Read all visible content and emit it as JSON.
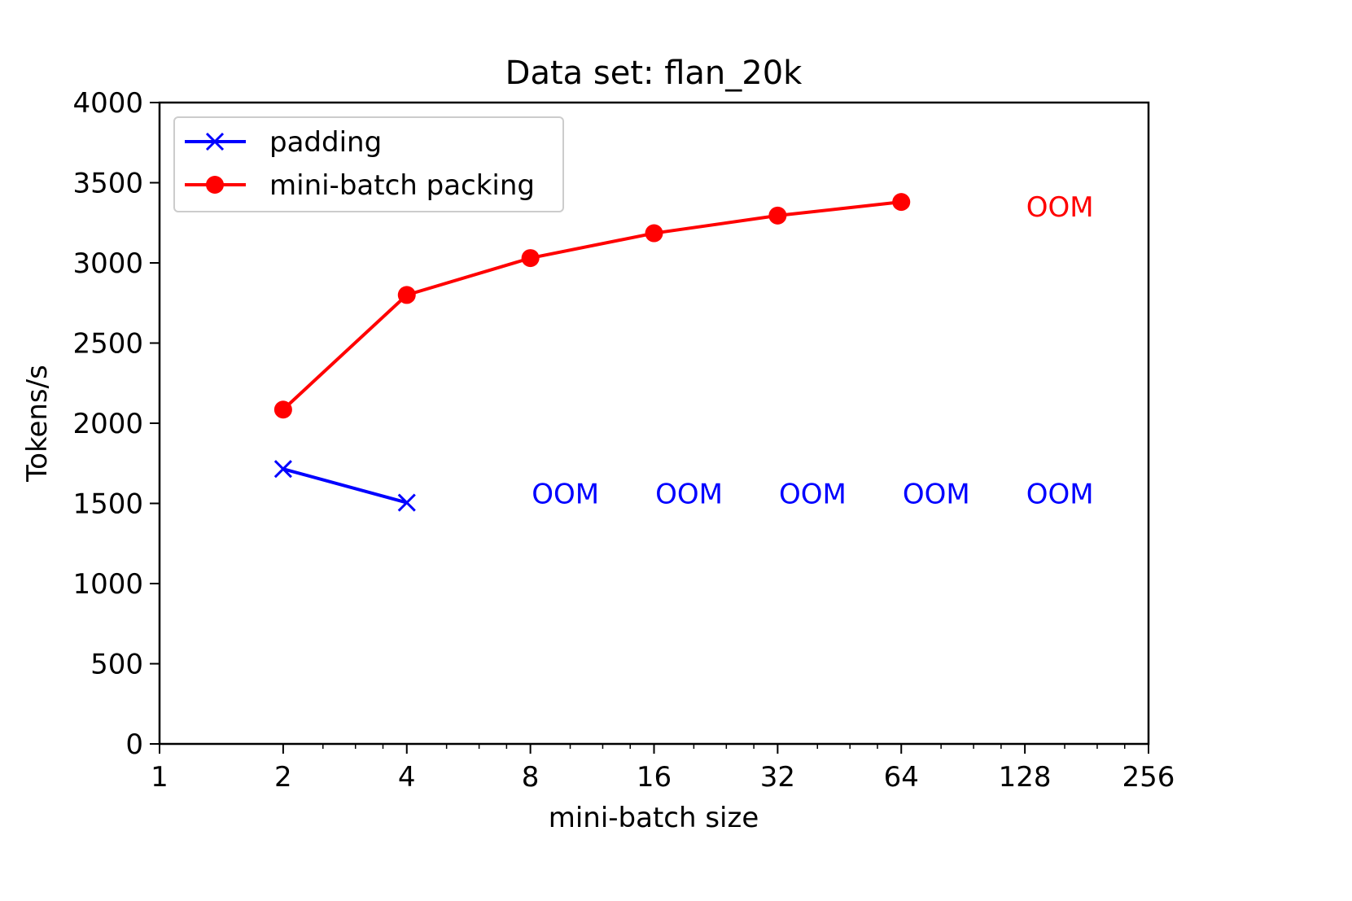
{
  "chart_data": {
    "type": "line",
    "title": "Data set: flan_20k",
    "xlabel": "mini-batch size",
    "ylabel": "Tokens/s",
    "xscale": "log2",
    "xlim": [
      1,
      256
    ],
    "ylim": [
      0,
      4000
    ],
    "xticks": [
      1,
      2,
      4,
      8,
      16,
      32,
      64,
      128,
      256
    ],
    "xtick_labels": [
      "1",
      "2",
      "4",
      "8",
      "16",
      "32",
      "64",
      "128",
      "256"
    ],
    "yticks": [
      0,
      500,
      1000,
      1500,
      2000,
      2500,
      3000,
      3500,
      4000
    ],
    "ytick_labels": [
      "0",
      "500",
      "1000",
      "1500",
      "2000",
      "2500",
      "3000",
      "3500",
      "4000"
    ],
    "grid": false,
    "legend_position": "top-left",
    "series": [
      {
        "name": "padding",
        "color": "#0000ff",
        "marker": "x",
        "x": [
          2,
          4
        ],
        "y": [
          1715,
          1505
        ]
      },
      {
        "name": "mini-batch packing",
        "color": "#ff0000",
        "marker": "circle",
        "x": [
          2,
          4,
          8,
          16,
          32,
          64
        ],
        "y": [
          2085,
          2800,
          3030,
          3185,
          3295,
          3380
        ]
      }
    ],
    "annotations": [
      {
        "text": "OOM",
        "x": 128,
        "y": 3350,
        "color": "#ff0000"
      },
      {
        "text": "OOM",
        "x": 8,
        "y": 1560,
        "color": "#0000ff"
      },
      {
        "text": "OOM",
        "x": 16,
        "y": 1560,
        "color": "#0000ff"
      },
      {
        "text": "OOM",
        "x": 32,
        "y": 1560,
        "color": "#0000ff"
      },
      {
        "text": "OOM",
        "x": 64,
        "y": 1560,
        "color": "#0000ff"
      },
      {
        "text": "OOM",
        "x": 128,
        "y": 1560,
        "color": "#0000ff"
      }
    ]
  }
}
